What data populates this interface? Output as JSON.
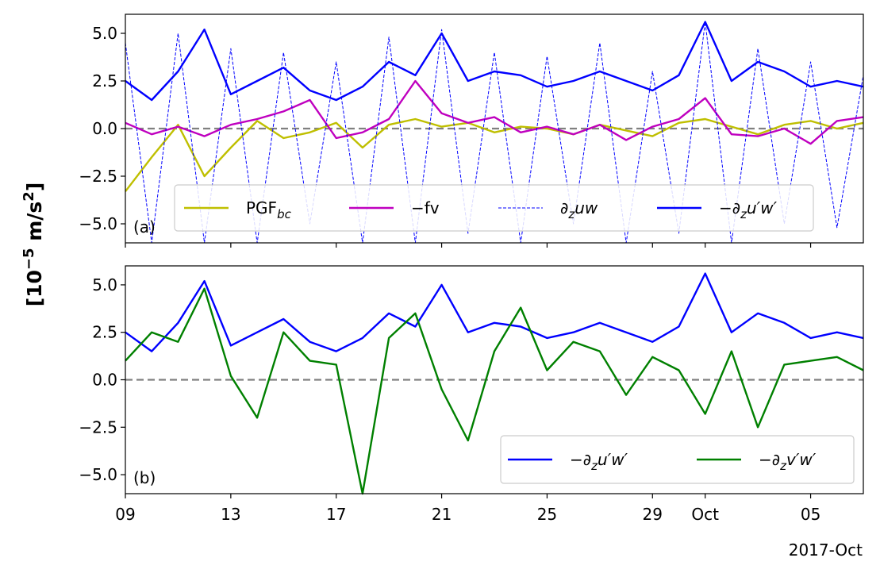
{
  "figure": {
    "ylabel_base": "[10",
    "ylabel_exp": "−5",
    "ylabel_unit": " m/s",
    "ylabel_unit_exp": "2",
    "ylabel_close": "]",
    "date_offset_label": "2017-Oct"
  },
  "colors": {
    "pgf": "#bfbf00",
    "fv": "#bf00bf",
    "dzuw": "#0000ff",
    "uw": "#0000ff",
    "vw": "#008000",
    "zero_line": "#808080"
  },
  "chart_data": [
    {
      "type": "line",
      "panel_label": "(a)",
      "x_range": [
        "2017-09-09",
        "2017-10-07"
      ],
      "ylim": [
        -6.0,
        6.0
      ],
      "yticks": [
        -5.0,
        -2.5,
        0.0,
        2.5,
        5.0
      ],
      "ytick_labels": [
        "−5.0",
        "−2.5",
        "0.0",
        "2.5",
        "5.0"
      ],
      "xticks": [
        "2017-09-09",
        "2017-09-13",
        "2017-09-17",
        "2017-09-21",
        "2017-09-25",
        "2017-09-29",
        "2017-10-01",
        "2017-10-05"
      ],
      "xtick_labels": [],
      "zero_reference_line": 0.0,
      "legend": {
        "placement": "lower-center",
        "columns": 4
      },
      "series": [
        {
          "name": "PGF_bc",
          "key": "pgf",
          "legend_main": "PGF",
          "legend_sub": "bc",
          "x": [
            "2017-09-09",
            "2017-09-10",
            "2017-09-11",
            "2017-09-12",
            "2017-09-13",
            "2017-09-14",
            "2017-09-15",
            "2017-09-16",
            "2017-09-17",
            "2017-09-18",
            "2017-09-19",
            "2017-09-20",
            "2017-09-21",
            "2017-09-22",
            "2017-09-23",
            "2017-09-24",
            "2017-09-25",
            "2017-09-26",
            "2017-09-27",
            "2017-09-28",
            "2017-09-29",
            "2017-09-30",
            "2017-10-01",
            "2017-10-02",
            "2017-10-03",
            "2017-10-04",
            "2017-10-05",
            "2017-10-06",
            "2017-10-07"
          ],
          "values": [
            -3.3,
            -1.5,
            0.2,
            -2.5,
            -1.0,
            0.4,
            -0.5,
            -0.2,
            0.3,
            -1.0,
            0.2,
            0.5,
            0.1,
            0.3,
            -0.2,
            0.1,
            0.0,
            -0.3,
            0.2,
            -0.1,
            -0.4,
            0.3,
            0.5,
            0.1,
            -0.3,
            0.2,
            0.4,
            0.0,
            0.3
          ]
        },
        {
          "name": "−fv",
          "key": "fv",
          "legend_main": "−fv",
          "x": [
            "2017-09-09",
            "2017-09-10",
            "2017-09-11",
            "2017-09-12",
            "2017-09-13",
            "2017-09-14",
            "2017-09-15",
            "2017-09-16",
            "2017-09-17",
            "2017-09-18",
            "2017-09-19",
            "2017-09-20",
            "2017-09-21",
            "2017-09-22",
            "2017-09-23",
            "2017-09-24",
            "2017-09-25",
            "2017-09-26",
            "2017-09-27",
            "2017-09-28",
            "2017-09-29",
            "2017-09-30",
            "2017-10-01",
            "2017-10-02",
            "2017-10-03",
            "2017-10-04",
            "2017-10-05",
            "2017-10-06",
            "2017-10-07"
          ],
          "values": [
            0.3,
            -0.3,
            0.1,
            -0.4,
            0.2,
            0.5,
            0.9,
            1.5,
            -0.5,
            -0.2,
            0.5,
            2.5,
            0.8,
            0.3,
            0.6,
            -0.2,
            0.1,
            -0.3,
            0.2,
            -0.6,
            0.1,
            0.5,
            1.6,
            -0.3,
            -0.4,
            0.0,
            -0.8,
            0.4,
            0.6
          ]
        },
        {
          "name": "∂z uw",
          "key": "dzuw",
          "legend_main": "∂",
          "legend_sub": "z",
          "legend_tail": "uw",
          "dashed": true,
          "x": [
            "2017-09-09",
            "2017-09-10",
            "2017-09-11",
            "2017-09-12",
            "2017-09-13",
            "2017-09-14",
            "2017-09-15",
            "2017-09-16",
            "2017-09-17",
            "2017-09-18",
            "2017-09-19",
            "2017-09-20",
            "2017-09-21",
            "2017-09-22",
            "2017-09-23",
            "2017-09-24",
            "2017-09-25",
            "2017-09-26",
            "2017-09-27",
            "2017-09-28",
            "2017-09-29",
            "2017-09-30",
            "2017-10-01",
            "2017-10-02",
            "2017-10-03",
            "2017-10-04",
            "2017-10-05",
            "2017-10-06",
            "2017-10-07"
          ],
          "values": [
            4.5,
            -6.0,
            5.0,
            -6.0,
            4.2,
            -6.0,
            4.0,
            -5.0,
            3.5,
            -6.0,
            4.8,
            -6.0,
            5.2,
            -5.5,
            4.0,
            -6.0,
            3.8,
            -5.0,
            4.5,
            -6.0,
            3.0,
            -5.5,
            5.6,
            -6.0,
            4.2,
            -5.0,
            3.5,
            -5.2,
            2.8
          ]
        },
        {
          "name": "−∂z u'w'",
          "key": "uw",
          "legend_main": "−∂",
          "legend_sub": "z",
          "legend_tail": "u′w′",
          "x": [
            "2017-09-09",
            "2017-09-10",
            "2017-09-11",
            "2017-09-12",
            "2017-09-13",
            "2017-09-14",
            "2017-09-15",
            "2017-09-16",
            "2017-09-17",
            "2017-09-18",
            "2017-09-19",
            "2017-09-20",
            "2017-09-21",
            "2017-09-22",
            "2017-09-23",
            "2017-09-24",
            "2017-09-25",
            "2017-09-26",
            "2017-09-27",
            "2017-09-28",
            "2017-09-29",
            "2017-09-30",
            "2017-10-01",
            "2017-10-02",
            "2017-10-03",
            "2017-10-04",
            "2017-10-05",
            "2017-10-06",
            "2017-10-07"
          ],
          "values": [
            2.5,
            1.5,
            3.0,
            5.2,
            1.8,
            2.5,
            3.2,
            2.0,
            1.5,
            2.2,
            3.5,
            2.8,
            5.0,
            2.5,
            3.0,
            2.8,
            2.2,
            2.5,
            3.0,
            2.5,
            2.0,
            2.8,
            5.6,
            2.5,
            3.5,
            3.0,
            2.2,
            2.5,
            2.2
          ]
        }
      ]
    },
    {
      "type": "line",
      "panel_label": "(b)",
      "x_range": [
        "2017-09-09",
        "2017-10-07"
      ],
      "ylim": [
        -6.0,
        6.0
      ],
      "yticks": [
        -5.0,
        -2.5,
        0.0,
        2.5,
        5.0
      ],
      "ytick_labels": [
        "−5.0",
        "−2.5",
        "0.0",
        "2.5",
        "5.0"
      ],
      "xticks": [
        "2017-09-09",
        "2017-09-13",
        "2017-09-17",
        "2017-09-21",
        "2017-09-25",
        "2017-09-29",
        "2017-10-01",
        "2017-10-05"
      ],
      "xtick_labels": [
        "09",
        "13",
        "17",
        "21",
        "25",
        "29",
        "Oct",
        "05"
      ],
      "zero_reference_line": 0.0,
      "legend": {
        "placement": "lower-right",
        "columns": 2
      },
      "series": [
        {
          "name": "−∂z u'w'",
          "key": "uw",
          "legend_main": "−∂",
          "legend_sub": "z",
          "legend_tail": "u′w′",
          "x": [
            "2017-09-09",
            "2017-09-10",
            "2017-09-11",
            "2017-09-12",
            "2017-09-13",
            "2017-09-14",
            "2017-09-15",
            "2017-09-16",
            "2017-09-17",
            "2017-09-18",
            "2017-09-19",
            "2017-09-20",
            "2017-09-21",
            "2017-09-22",
            "2017-09-23",
            "2017-09-24",
            "2017-09-25",
            "2017-09-26",
            "2017-09-27",
            "2017-09-28",
            "2017-09-29",
            "2017-09-30",
            "2017-10-01",
            "2017-10-02",
            "2017-10-03",
            "2017-10-04",
            "2017-10-05",
            "2017-10-06",
            "2017-10-07"
          ],
          "values": [
            2.5,
            1.5,
            3.0,
            5.2,
            1.8,
            2.5,
            3.2,
            2.0,
            1.5,
            2.2,
            3.5,
            2.8,
            5.0,
            2.5,
            3.0,
            2.8,
            2.2,
            2.5,
            3.0,
            2.5,
            2.0,
            2.8,
            5.6,
            2.5,
            3.5,
            3.0,
            2.2,
            2.5,
            2.2
          ]
        },
        {
          "name": "−∂z v'w'",
          "key": "vw",
          "legend_main": "−∂",
          "legend_sub": "z",
          "legend_tail": "v′w′",
          "x": [
            "2017-09-09",
            "2017-09-10",
            "2017-09-11",
            "2017-09-12",
            "2017-09-13",
            "2017-09-14",
            "2017-09-15",
            "2017-09-16",
            "2017-09-17",
            "2017-09-18",
            "2017-09-19",
            "2017-09-20",
            "2017-09-21",
            "2017-09-22",
            "2017-09-23",
            "2017-09-24",
            "2017-09-25",
            "2017-09-26",
            "2017-09-27",
            "2017-09-28",
            "2017-09-29",
            "2017-09-30",
            "2017-10-01",
            "2017-10-02",
            "2017-10-03",
            "2017-10-04",
            "2017-10-05",
            "2017-10-06",
            "2017-10-07"
          ],
          "values": [
            1.0,
            2.5,
            2.0,
            4.8,
            0.2,
            -2.0,
            2.5,
            1.0,
            0.8,
            -6.0,
            2.2,
            3.5,
            -0.5,
            -3.2,
            1.5,
            3.8,
            0.5,
            2.0,
            1.5,
            -0.8,
            1.2,
            0.5,
            -1.8,
            1.5,
            -2.5,
            0.8,
            1.0,
            1.2,
            0.5
          ]
        }
      ]
    }
  ]
}
